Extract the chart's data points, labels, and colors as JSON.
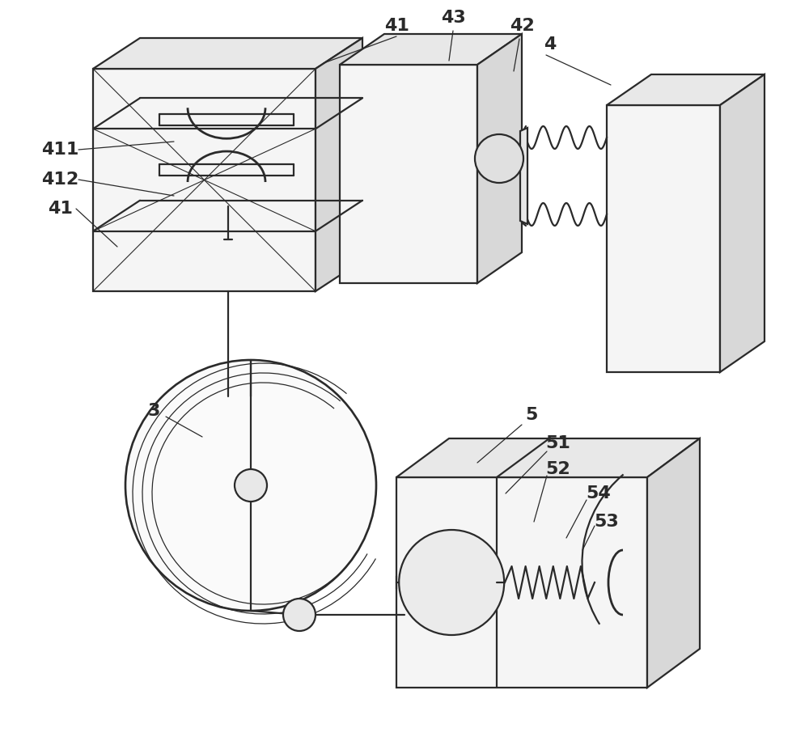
{
  "bg": "#ffffff",
  "lc": "#2a2a2a",
  "lw": 1.6,
  "face_light": "#f5f5f5",
  "face_top": "#e8e8e8",
  "face_side": "#d8d8d8"
}
